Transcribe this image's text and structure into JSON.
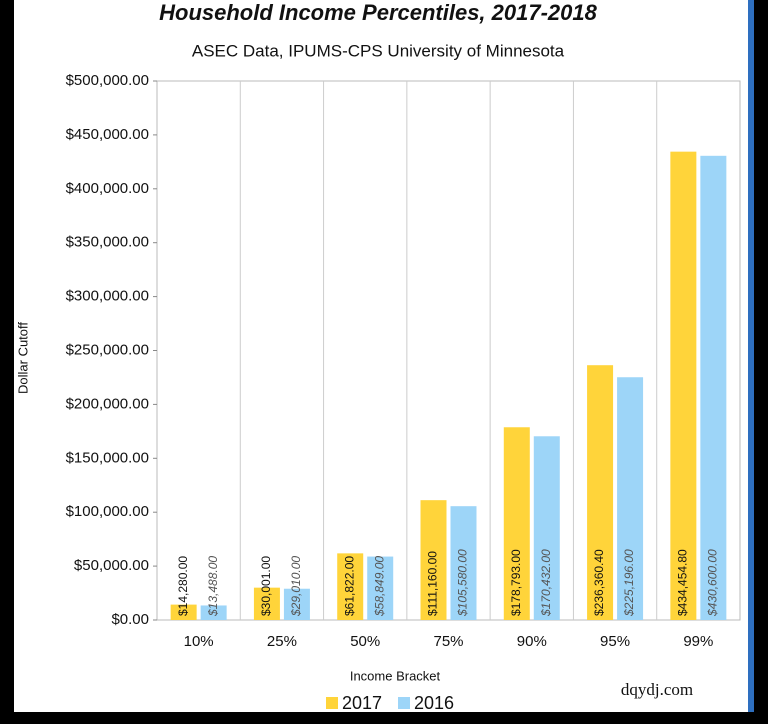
{
  "chart_data": {
    "type": "bar",
    "title": "Household Income Percentiles, 2017-2018",
    "subtitle": "ASEC Data, IPUMS-CPS University of Minnesota",
    "y_label": "Dollar Cutoff",
    "x_label": "Income Bracket",
    "watermark": "dqydj.com",
    "categories": [
      "10%",
      "25%",
      "50%",
      "75%",
      "90%",
      "95%",
      "99%"
    ],
    "series": [
      {
        "name": "2017",
        "color": "#FFD43A",
        "values": [
          14280,
          30001,
          61822,
          111160,
          178793,
          236360.4,
          434454.8
        ],
        "value_labels": [
          "$14,280.00",
          "$30,001.00",
          "$61,822.00",
          "$111,160.00",
          "$178,793.00",
          "$236,360.40",
          "$434,454.80"
        ]
      },
      {
        "name": "2016",
        "color": "#9DD5F8",
        "values": [
          13488,
          29010,
          58849,
          105580,
          170432,
          225196,
          430600
        ],
        "value_labels": [
          "$13,488.00",
          "$29,010.00",
          "$58,849.00",
          "$105,580.00",
          "$170,432.00",
          "$225,196.00",
          "$430,600.00"
        ]
      }
    ],
    "ylim": [
      0,
      500000
    ],
    "yticks": [
      {
        "value": 0,
        "label": "$0.00"
      },
      {
        "value": 50000,
        "label": "$50,000.00"
      },
      {
        "value": 100000,
        "label": "$100,000.00"
      },
      {
        "value": 150000,
        "label": "$150,000.00"
      },
      {
        "value": 200000,
        "label": "$200,000.00"
      },
      {
        "value": 250000,
        "label": "$250,000.00"
      },
      {
        "value": 300000,
        "label": "$300,000.00"
      },
      {
        "value": 350000,
        "label": "$350,000.00"
      },
      {
        "value": 400000,
        "label": "$400,000.00"
      },
      {
        "value": 450000,
        "label": "$450,000.00"
      },
      {
        "value": 500000,
        "label": "$500,000.00"
      }
    ],
    "legend": "bottom"
  }
}
